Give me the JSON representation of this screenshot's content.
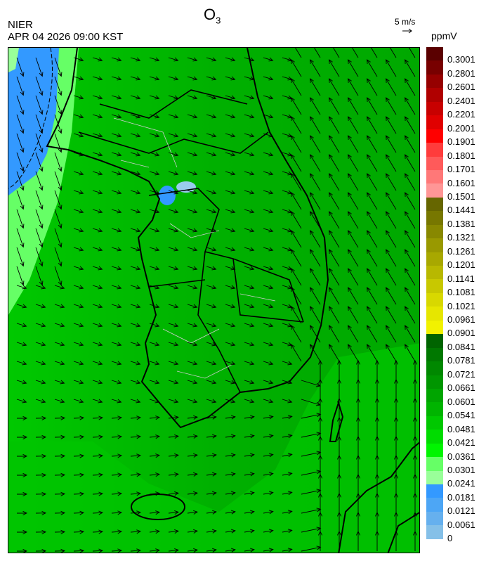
{
  "header": {
    "title": "O",
    "title_sub": "3",
    "organization": "NIER",
    "timestamp": "APR 04 2026 09:00 KST",
    "reference_vector_label": "5 m/s",
    "unit": "ppmV"
  },
  "colorbar": {
    "labels": [
      "0.3001",
      "0.2801",
      "0.2601",
      "0.2401",
      "0.2201",
      "0.2001",
      "0.1901",
      "0.1801",
      "0.1701",
      "0.1601",
      "0.1501",
      "0.1441",
      "0.1381",
      "0.1321",
      "0.1261",
      "0.1201",
      "0.1141",
      "0.1081",
      "0.1021",
      "0.0961",
      "0.0901",
      "0.0841",
      "0.0781",
      "0.0721",
      "0.0661",
      "0.0601",
      "0.0541",
      "0.0481",
      "0.0421",
      "0.0361",
      "0.0301",
      "0.0241",
      "0.0181",
      "0.0121",
      "0.0061",
      "0"
    ],
    "colors": [
      "#5a0000",
      "#780000",
      "#960000",
      "#b00000",
      "#c80000",
      "#e00000",
      "#ff0000",
      "#ff3c3c",
      "#ff5a5a",
      "#ff7878",
      "#ff9696",
      "#666600",
      "#777700",
      "#888800",
      "#999900",
      "#a8a800",
      "#b8b800",
      "#c8c800",
      "#d8d800",
      "#e6e600",
      "#f2f200",
      "#006400",
      "#007800",
      "#008800",
      "#009600",
      "#00a500",
      "#00b400",
      "#00c800",
      "#00dc00",
      "#00f500",
      "#66ff66",
      "#99ff99",
      "#3399ff",
      "#4da6f5",
      "#66b0ee",
      "#85c0e8",
      "#99cce6"
    ]
  },
  "map": {
    "variable": "O3",
    "dominant_color": "#00b400",
    "low_region_color": "#3399ff",
    "coastline_color": "#000000",
    "district_color": "#c8c8c8",
    "wind_vectors": "black arrows"
  }
}
